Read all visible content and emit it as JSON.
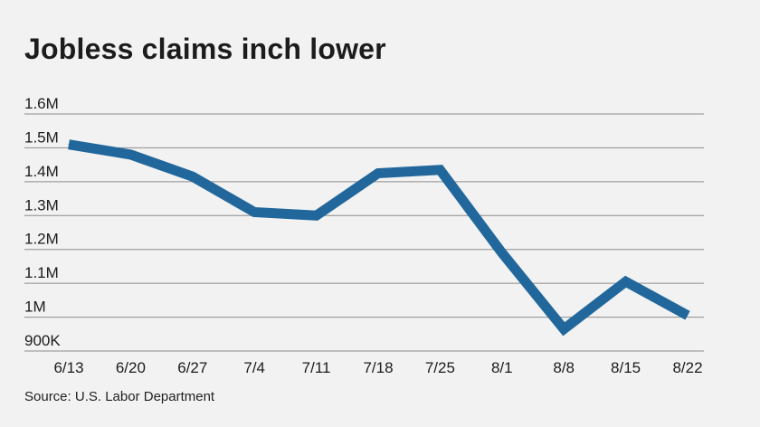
{
  "chart_data": {
    "type": "line",
    "title": "Jobless claims inch lower",
    "xlabel": "",
    "ylabel": "",
    "source": "Source: U.S. Labor Department",
    "categories": [
      "6/13",
      "6/20",
      "6/27",
      "7/4",
      "7/11",
      "7/18",
      "7/25",
      "8/1",
      "8/8",
      "8/15",
      "8/22"
    ],
    "series": [
      {
        "values": [
          1510000,
          1480000,
          1415000,
          1310000,
          1300000,
          1425000,
          1435000,
          1190000,
          965000,
          1105000,
          1005000
        ]
      }
    ],
    "y_ticks": [
      {
        "value": 900000,
        "label": "900K"
      },
      {
        "value": 1000000,
        "label": "1M"
      },
      {
        "value": 1100000,
        "label": "1.1M"
      },
      {
        "value": 1200000,
        "label": "1.2M"
      },
      {
        "value": 1300000,
        "label": "1.3M"
      },
      {
        "value": 1400000,
        "label": "1.4M"
      },
      {
        "value": 1500000,
        "label": "1.5M"
      },
      {
        "value": 1600000,
        "label": "1.6M"
      }
    ],
    "ylim": [
      900000,
      1600000
    ],
    "grid": true,
    "line_color": "#21679c",
    "grid_color": "#8c8c8c"
  }
}
